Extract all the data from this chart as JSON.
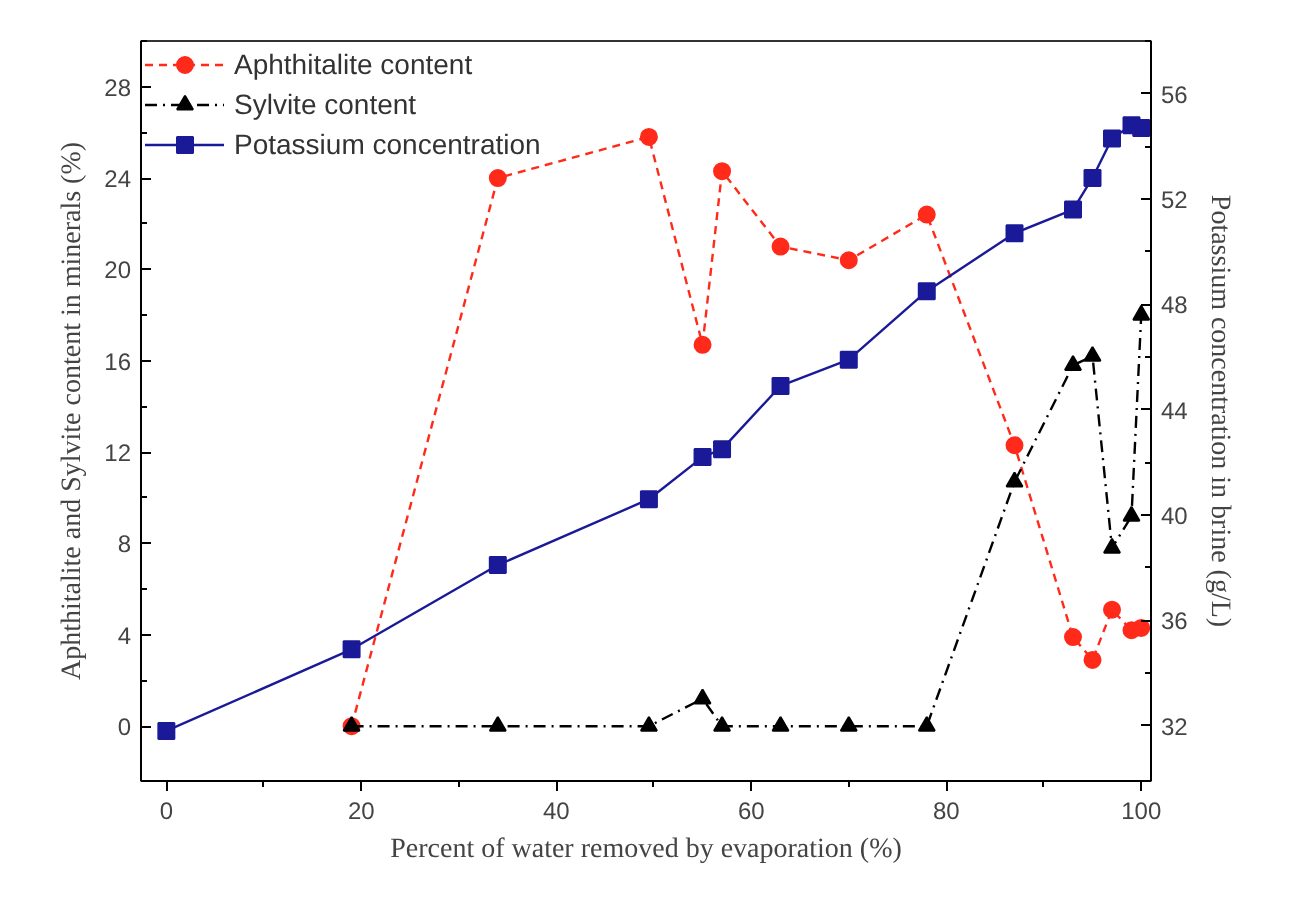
{
  "chart_data": {
    "type": "line",
    "xlabel": "Percent of water removed by evaporation (%)",
    "ylabel": "Aphthitalite and Sylvite content in minerals (%)",
    "y2label": "Potassium concentration in brine (g/L)",
    "xlim": [
      -2.6,
      101
    ],
    "xticks": [
      0,
      20,
      40,
      60,
      80,
      100
    ],
    "ylim": [
      -2.4,
      30
    ],
    "yticks": [
      0,
      4,
      8,
      12,
      16,
      20,
      24,
      28
    ],
    "y2lim": [
      29.9,
      58
    ],
    "y2ticks": [
      32,
      36,
      40,
      44,
      48,
      52,
      56
    ],
    "legend": "top left",
    "grid": false,
    "series": [
      {
        "name": "Aphthitalite content",
        "color": "#ff2a1a",
        "marker": "circle",
        "line_style": "dashed",
        "x": [
          19,
          34,
          49.5,
          55,
          57,
          63,
          70,
          78,
          87,
          93,
          95,
          97,
          99,
          100
        ],
        "values": [
          0,
          24,
          25.8,
          16.7,
          24.3,
          21,
          20.4,
          22.4,
          12.3,
          3.9,
          2.9,
          5.1,
          4.2,
          4.3
        ]
      },
      {
        "name": "Sylvite content",
        "color": "#000000",
        "marker": "triangle",
        "line_style": "dashdot",
        "x": [
          19,
          34,
          49.5,
          55,
          57,
          63,
          70,
          78,
          87,
          93,
          95,
          97,
          99,
          100
        ],
        "values": [
          0,
          0,
          0,
          1.2,
          0,
          0,
          0,
          0,
          10.7,
          15.8,
          16.2,
          7.8,
          9.2,
          18
        ]
      },
      {
        "name": "Potassium concentration",
        "color": "#1a1a99",
        "marker": "square",
        "line_style": "solid",
        "axis": "y2",
        "x": [
          0,
          19,
          34,
          49.5,
          55,
          57,
          63,
          70,
          78,
          87,
          93,
          95,
          97,
          99,
          100
        ],
        "values": [
          31.8,
          34.9,
          38.1,
          40.6,
          42.2,
          42.5,
          44.9,
          45.9,
          48.5,
          50.7,
          51.6,
          52.8,
          54.3,
          54.8,
          54.7
        ]
      }
    ]
  }
}
